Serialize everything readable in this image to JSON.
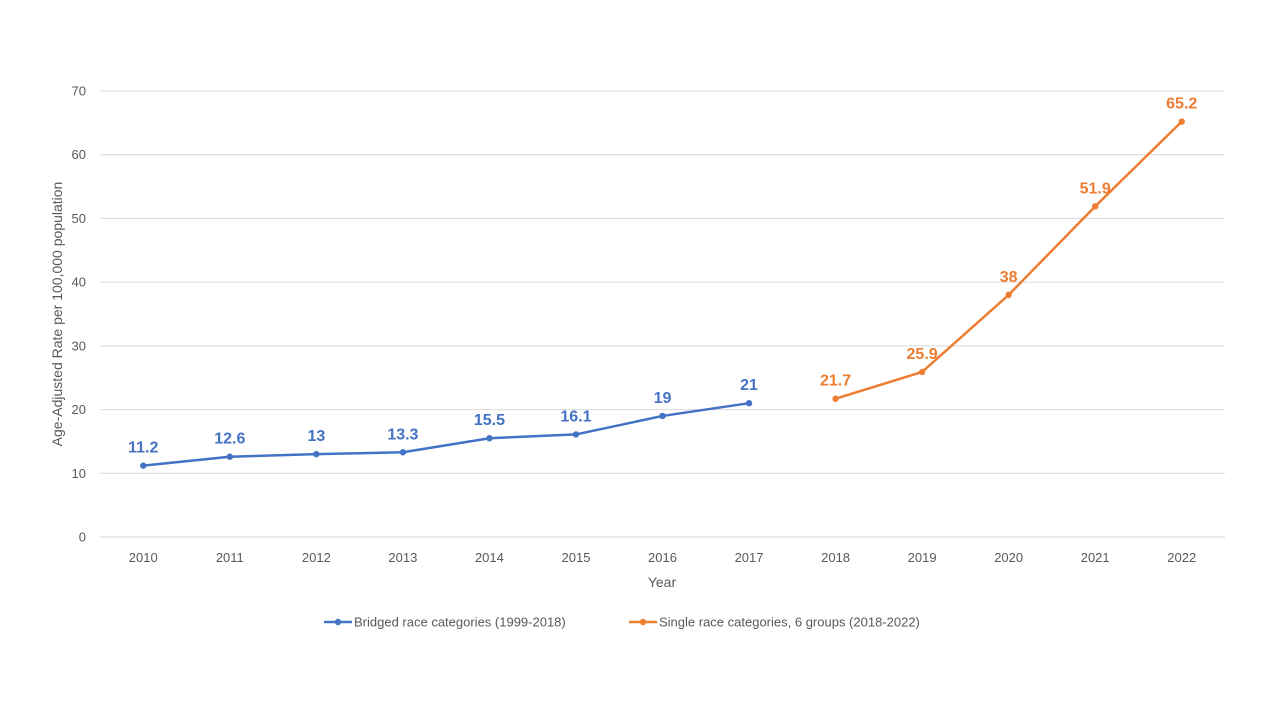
{
  "chart_data": {
    "type": "line",
    "title": "",
    "xlabel": "Year",
    "ylabel": "Age-Adjusted Rate per 100,000 population",
    "ylim": [
      0,
      70
    ],
    "yticks": [
      0,
      10,
      20,
      30,
      40,
      50,
      60,
      70
    ],
    "categories": [
      "2010",
      "2011",
      "2012",
      "2013",
      "2014",
      "2015",
      "2016",
      "2017",
      "2018",
      "2019",
      "2020",
      "2021",
      "2022"
    ],
    "grid": true,
    "legend_position": "bottom",
    "series": [
      {
        "name": "Bridged race categories (1999-2018)",
        "color": "#4472C4",
        "x": [
          "2010",
          "2011",
          "2012",
          "2013",
          "2014",
          "2015",
          "2016",
          "2017"
        ],
        "values": [
          11.2,
          12.6,
          13,
          13.3,
          15.5,
          16.1,
          19,
          21
        ],
        "labels": [
          "11.2",
          "12.6",
          "13",
          "13.3",
          "15.5",
          "16.1",
          "19",
          "21"
        ]
      },
      {
        "name": "Single race categories, 6 groups (2018-2022)",
        "color": "#ED7D31",
        "x": [
          "2018",
          "2019",
          "2020",
          "2021",
          "2022"
        ],
        "values": [
          21.7,
          25.9,
          38,
          51.9,
          65.2
        ],
        "labels": [
          "21.7",
          "25.9",
          "38",
          "51.9",
          "65.2"
        ]
      }
    ]
  }
}
